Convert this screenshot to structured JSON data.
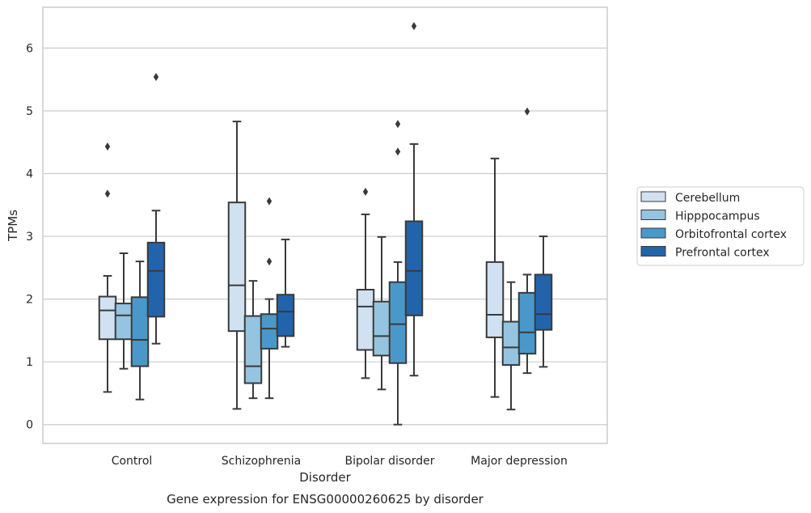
{
  "chart_data": {
    "type": "box",
    "caption": "Gene expression for ENSG00000260625 by disorder",
    "xlabel": "Disorder",
    "ylabel": "TPMs",
    "ylim": [
      -0.3,
      6.65
    ],
    "yticks": [
      0,
      1,
      2,
      3,
      4,
      5,
      6
    ],
    "grid": "horizontal",
    "legend_placement": "right",
    "categories": [
      "Control",
      "Schizophrenia",
      "Bipolar disorder",
      "Major depression"
    ],
    "series": [
      {
        "name": "Cerebellum",
        "color": "#d0e1f2",
        "boxes": [
          {
            "whisker_low": 0.52,
            "q1": 1.36,
            "median": 1.82,
            "q3": 2.04,
            "whisker_high": 2.37,
            "outliers": [
              3.68,
              4.43
            ]
          },
          {
            "whisker_low": 0.25,
            "q1": 1.49,
            "median": 2.22,
            "q3": 3.54,
            "whisker_high": 4.83,
            "outliers": []
          },
          {
            "whisker_low": 0.74,
            "q1": 1.19,
            "median": 1.88,
            "q3": 2.15,
            "whisker_high": 3.35,
            "outliers": [
              3.71
            ]
          },
          {
            "whisker_low": 0.44,
            "q1": 1.39,
            "median": 1.75,
            "q3": 2.59,
            "whisker_high": 4.24,
            "outliers": []
          }
        ]
      },
      {
        "name": "Hipppocampus",
        "color": "#94c4df",
        "boxes": [
          {
            "whisker_low": 0.89,
            "q1": 1.36,
            "median": 1.74,
            "q3": 1.93,
            "whisker_high": 2.73,
            "outliers": []
          },
          {
            "whisker_low": 0.42,
            "q1": 0.66,
            "median": 0.93,
            "q3": 1.73,
            "whisker_high": 2.29,
            "outliers": []
          },
          {
            "whisker_low": 0.56,
            "q1": 1.1,
            "median": 1.41,
            "q3": 1.96,
            "whisker_high": 2.99,
            "outliers": []
          },
          {
            "whisker_low": 0.24,
            "q1": 0.95,
            "median": 1.23,
            "q3": 1.64,
            "whisker_high": 2.27,
            "outliers": []
          }
        ]
      },
      {
        "name": "Orbitofrontal cortex",
        "color": "#4a98c9",
        "boxes": [
          {
            "whisker_low": 0.4,
            "q1": 0.93,
            "median": 1.35,
            "q3": 2.03,
            "whisker_high": 2.6,
            "outliers": []
          },
          {
            "whisker_low": 0.42,
            "q1": 1.21,
            "median": 1.53,
            "q3": 1.76,
            "whisker_high": 2.0,
            "outliers": [
              2.6,
              3.56
            ]
          },
          {
            "whisker_low": 0.0,
            "q1": 0.98,
            "median": 1.6,
            "q3": 2.27,
            "whisker_high": 2.59,
            "outliers": [
              4.35,
              4.79
            ]
          },
          {
            "whisker_low": 0.82,
            "q1": 1.13,
            "median": 1.47,
            "q3": 2.1,
            "whisker_high": 2.39,
            "outliers": [
              4.99
            ]
          }
        ]
      },
      {
        "name": "Prefrontal cortex",
        "color": "#2164ab",
        "boxes": [
          {
            "whisker_low": 1.29,
            "q1": 1.72,
            "median": 2.45,
            "q3": 2.9,
            "whisker_high": 3.41,
            "outliers": [
              5.54
            ]
          },
          {
            "whisker_low": 1.24,
            "q1": 1.41,
            "median": 1.8,
            "q3": 2.07,
            "whisker_high": 2.95,
            "outliers": []
          },
          {
            "whisker_low": 0.78,
            "q1": 1.74,
            "median": 2.45,
            "q3": 3.24,
            "whisker_high": 4.47,
            "outliers": [
              6.35
            ]
          },
          {
            "whisker_low": 0.92,
            "q1": 1.51,
            "median": 1.76,
            "q3": 2.39,
            "whisker_high": 3.0,
            "outliers": []
          }
        ]
      }
    ]
  }
}
